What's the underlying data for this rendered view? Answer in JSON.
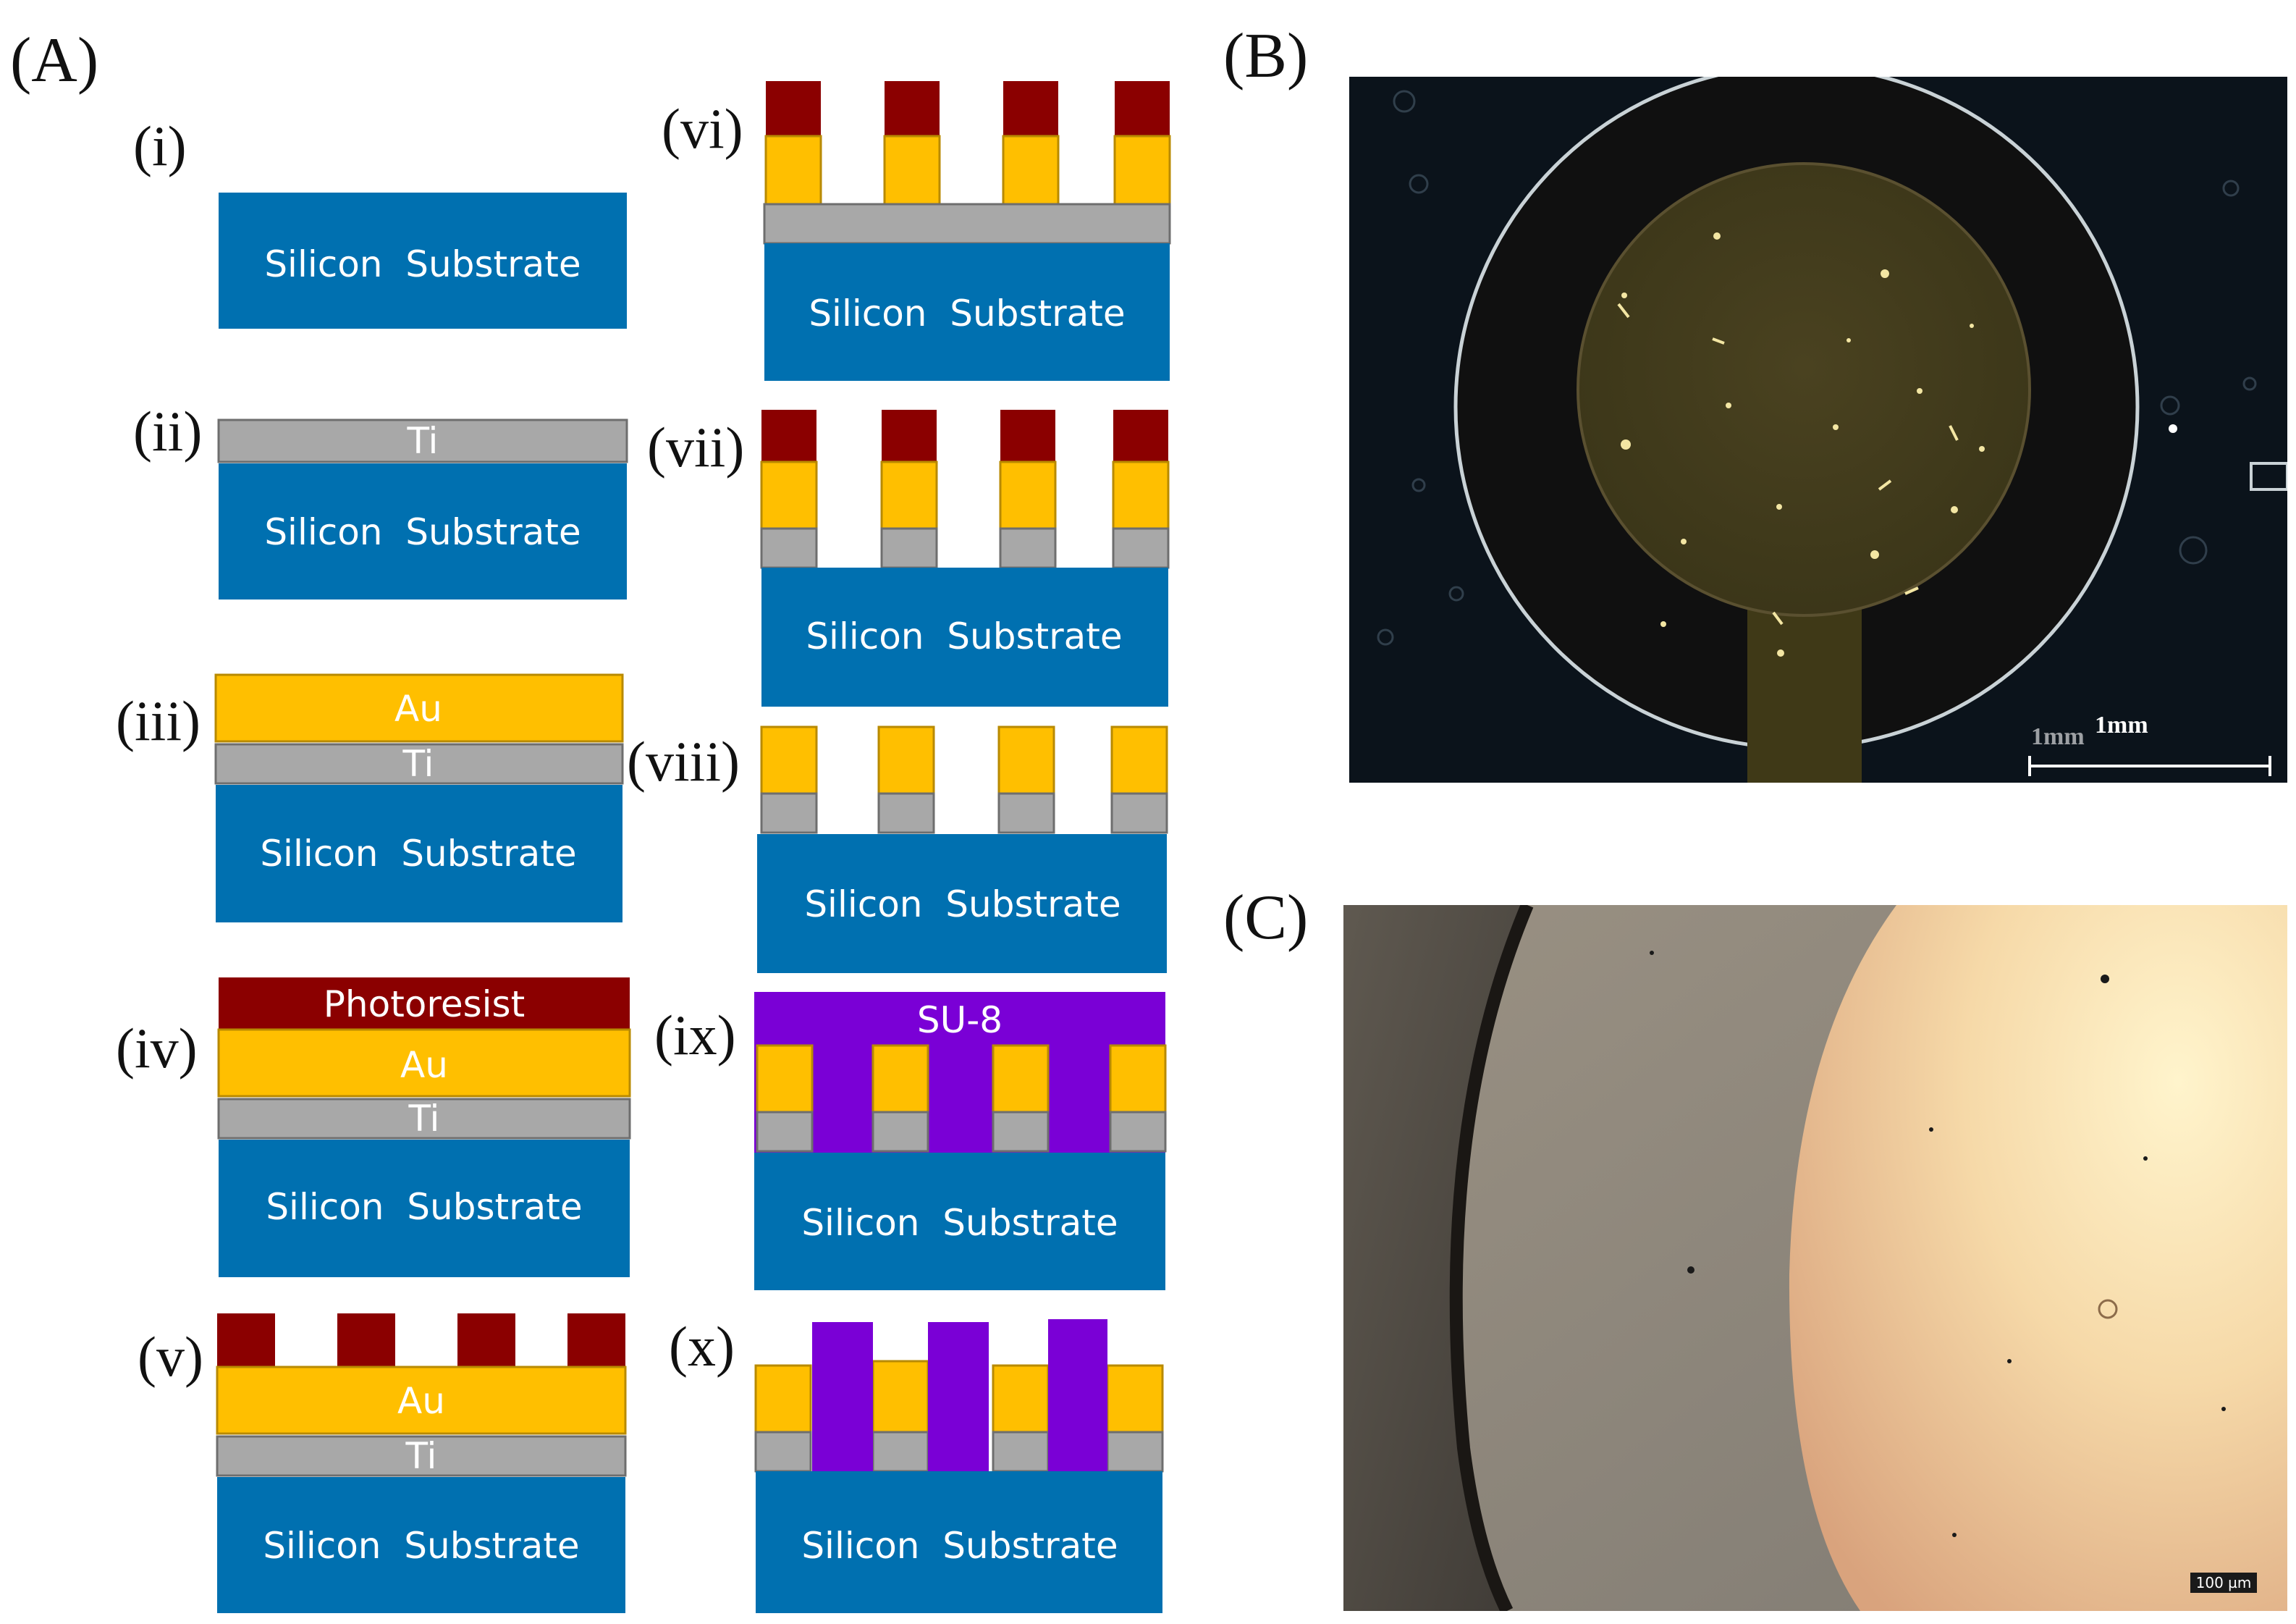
{
  "panels": {
    "A": "(A)",
    "B": "(B)",
    "C": "(C)"
  },
  "steps": {
    "i": "(i)",
    "ii": "(ii)",
    "iii": "(iii)",
    "iv": "(iv)",
    "v": "(v)",
    "vi": "(vi)",
    "vii": "(vii)",
    "viii": "(viii)",
    "ix": "(ix)",
    "x": "(x)"
  },
  "layers": {
    "substrate": "Silicon  Substrate",
    "ti": "Ti",
    "au": "Au",
    "photoresist": "Photoresist",
    "su8": "SU-8"
  },
  "micrograph_b": {
    "scale_label": "1mm",
    "scale_label_faint": "1mm"
  },
  "micrograph_c": {
    "scale_label": "100 µm"
  },
  "colors": {
    "substrate": "#0070b0",
    "ti": "#a8a8a8",
    "au": "#ffbf00",
    "photoresist": "#8b0000",
    "su8": "#7a00d6"
  }
}
